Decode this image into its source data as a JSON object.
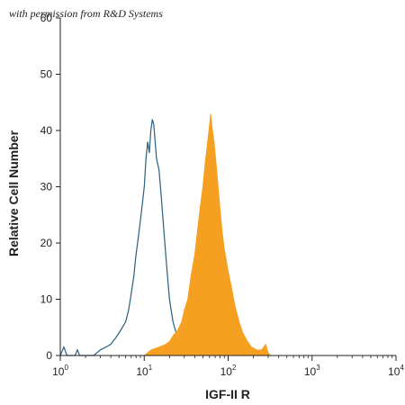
{
  "watermark": "with permission from R&D Systems",
  "chart_data": {
    "type": "area",
    "xlabel": "IGF-II R",
    "ylabel": "Relative Cell Number",
    "x_scale": "log",
    "xlim": [
      1,
      10000
    ],
    "ylim": [
      0,
      60
    ],
    "x_ticks": [
      1,
      10,
      100,
      1000,
      10000
    ],
    "x_tick_labels": [
      {
        "base": "10",
        "exp": "0"
      },
      {
        "base": "10",
        "exp": "1"
      },
      {
        "base": "10",
        "exp": "2"
      },
      {
        "base": "10",
        "exp": "3"
      },
      {
        "base": "10",
        "exp": "4"
      }
    ],
    "y_ticks": [
      0,
      10,
      20,
      30,
      40,
      50,
      60
    ],
    "y_tick_labels": [
      "0",
      "10",
      "20",
      "30",
      "40",
      "50",
      "60"
    ],
    "grid": false,
    "series": [
      {
        "style": "outline",
        "color": "#2a5f7f",
        "points": [
          [
            1.0,
            0
          ],
          [
            1.1,
            1.5
          ],
          [
            1.2,
            0
          ],
          [
            1.5,
            0
          ],
          [
            1.6,
            1
          ],
          [
            1.7,
            0
          ],
          [
            2.5,
            0
          ],
          [
            3.0,
            1
          ],
          [
            3.5,
            1.5
          ],
          [
            4.0,
            2
          ],
          [
            4.5,
            3
          ],
          [
            5.0,
            4
          ],
          [
            5.5,
            5
          ],
          [
            6.0,
            6
          ],
          [
            6.5,
            8
          ],
          [
            7.0,
            11
          ],
          [
            7.5,
            14
          ],
          [
            8.0,
            18
          ],
          [
            8.5,
            21
          ],
          [
            9.0,
            24
          ],
          [
            9.5,
            27
          ],
          [
            10.0,
            30
          ],
          [
            10.5,
            35
          ],
          [
            11.0,
            38
          ],
          [
            11.5,
            36
          ],
          [
            12.0,
            40
          ],
          [
            12.5,
            42
          ],
          [
            13.0,
            41
          ],
          [
            13.5,
            38
          ],
          [
            14.0,
            35
          ],
          [
            15.0,
            33
          ],
          [
            16.0,
            28
          ],
          [
            17.0,
            23
          ],
          [
            18.0,
            18
          ],
          [
            19.0,
            14
          ],
          [
            20.0,
            10
          ],
          [
            22.0,
            6
          ],
          [
            24.0,
            4
          ],
          [
            26.0,
            2
          ],
          [
            28.0,
            1
          ],
          [
            30.0,
            0.5
          ],
          [
            33.0,
            0
          ]
        ]
      },
      {
        "style": "filled",
        "color": "#f5a020",
        "points": [
          [
            10.0,
            0
          ],
          [
            12.0,
            1
          ],
          [
            15.0,
            1.5
          ],
          [
            18.0,
            2
          ],
          [
            20.0,
            2.5
          ],
          [
            22.0,
            3.5
          ],
          [
            25.0,
            4.5
          ],
          [
            28.0,
            6
          ],
          [
            30.0,
            8
          ],
          [
            33.0,
            10
          ],
          [
            36.0,
            14
          ],
          [
            40.0,
            18
          ],
          [
            43.0,
            22
          ],
          [
            46.0,
            26
          ],
          [
            50.0,
            30
          ],
          [
            53.0,
            34
          ],
          [
            56.0,
            37
          ],
          [
            60.0,
            41
          ],
          [
            62.0,
            43
          ],
          [
            65.0,
            40
          ],
          [
            68.0,
            38
          ],
          [
            72.0,
            34
          ],
          [
            76.0,
            30
          ],
          [
            80.0,
            26
          ],
          [
            85.0,
            22
          ],
          [
            90.0,
            19
          ],
          [
            100.0,
            15
          ],
          [
            110.0,
            12
          ],
          [
            120.0,
            9
          ],
          [
            135.0,
            6
          ],
          [
            150.0,
            4
          ],
          [
            170.0,
            2.5
          ],
          [
            190.0,
            1.5
          ],
          [
            220.0,
            1
          ],
          [
            250.0,
            1
          ],
          [
            280.0,
            2
          ],
          [
            300.0,
            0.5
          ],
          [
            320.0,
            0
          ]
        ]
      }
    ]
  }
}
